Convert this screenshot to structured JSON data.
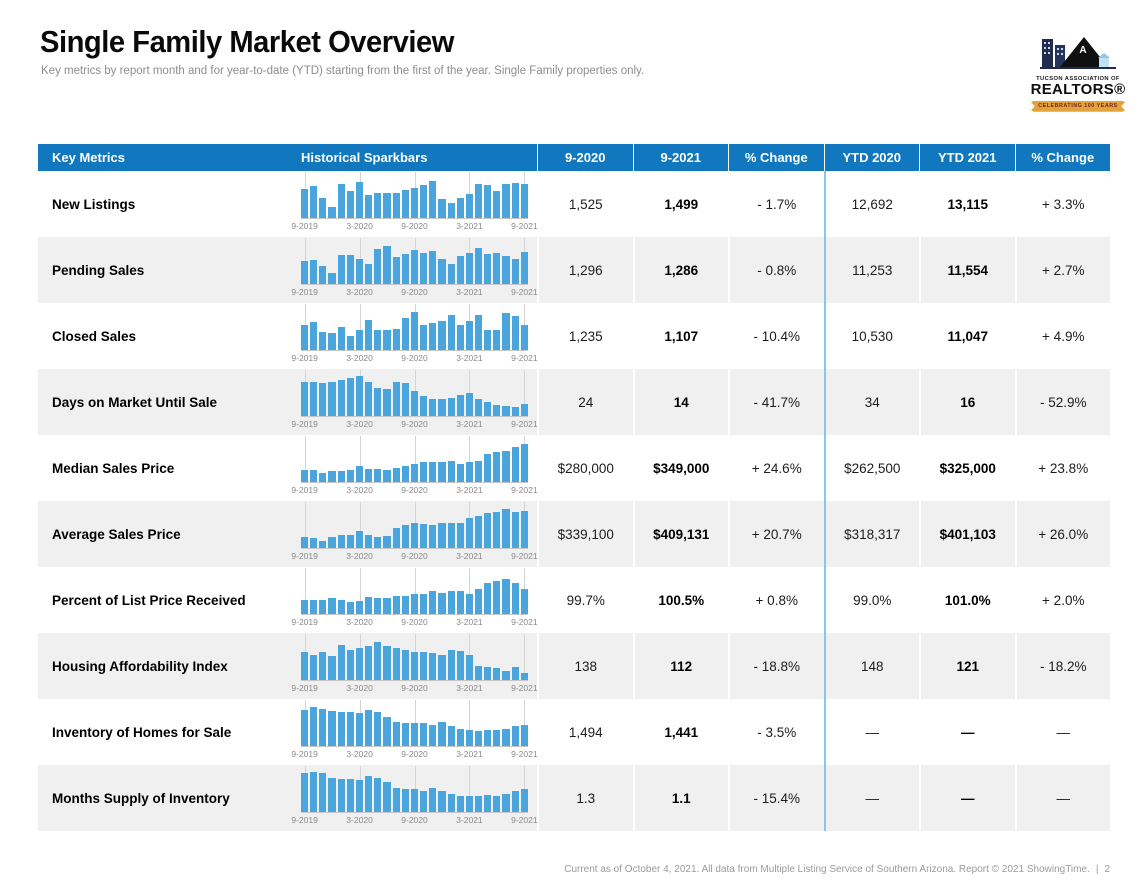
{
  "header": {
    "title": "Single Family Market Overview",
    "subtitle": "Key metrics by report month and for year-to-date (YTD) starting from the first of the year. Single Family properties only."
  },
  "logo": {
    "org_line1": "TUCSON ASSOCIATION OF",
    "org_line2": "REALTORS®",
    "banner": "CELEBRATING 100 YEARS"
  },
  "colors": {
    "header_blue": "#1177bf",
    "sparkbar_blue": "#49a5dc",
    "ytd_divider_blue": "#86c8ea",
    "row_alt_gray": "#f0f0f1"
  },
  "table": {
    "columns": [
      "Key Metrics",
      "Historical Sparkbars",
      "9-2020",
      "9-2021",
      "% Change",
      "YTD 2020",
      "YTD 2021",
      "% Change"
    ],
    "axis_labels": [
      "9-2019",
      "3-2020",
      "9-2020",
      "3-2021",
      "9-2021"
    ],
    "rows": [
      {
        "metric": "New Listings",
        "values": [
          "1,525",
          "1,499",
          "- 1.7%",
          "12,692",
          "13,115",
          "+ 3.3%"
        ],
        "sparkbar": [
          70,
          78,
          50,
          27,
          84,
          65,
          88,
          55,
          60,
          60,
          62,
          68,
          72,
          80,
          90,
          46,
          36,
          50,
          58,
          84,
          80,
          65,
          82,
          86,
          84
        ]
      },
      {
        "metric": "Pending Sales",
        "values": [
          "1,296",
          "1,286",
          "- 0.8%",
          "11,253",
          "11,554",
          "+ 2.7%"
        ],
        "sparkbar": [
          55,
          58,
          45,
          28,
          70,
          70,
          62,
          48,
          85,
          92,
          65,
          72,
          82,
          75,
          80,
          62,
          48,
          68,
          75,
          88,
          72,
          75,
          68,
          60,
          78
        ]
      },
      {
        "metric": "Closed Sales",
        "values": [
          "1,235",
          "1,107",
          "- 10.4%",
          "10,530",
          "11,047",
          "+ 4.9%"
        ],
        "sparkbar": [
          62,
          68,
          45,
          42,
          55,
          35,
          48,
          72,
          48,
          48,
          52,
          78,
          92,
          60,
          65,
          70,
          85,
          62,
          70,
          85,
          48,
          50,
          90,
          82,
          62
        ]
      },
      {
        "metric": "Days on Market Until Sale",
        "values": [
          "24",
          "14",
          "- 41.7%",
          "34",
          "16",
          "- 52.9%"
        ],
        "sparkbar": [
          82,
          84,
          80,
          84,
          88,
          92,
          98,
          82,
          68,
          65,
          82,
          80,
          62,
          48,
          42,
          42,
          45,
          52,
          55,
          42,
          35,
          28,
          25,
          22,
          30
        ]
      },
      {
        "metric": "Median Sales Price",
        "values": [
          "$280,000",
          "$349,000",
          "+ 24.6%",
          "$262,500",
          "$325,000",
          "+ 23.8%"
        ],
        "sparkbar": [
          30,
          30,
          22,
          28,
          28,
          30,
          38,
          32,
          32,
          30,
          35,
          40,
          45,
          48,
          48,
          50,
          52,
          45,
          50,
          52,
          68,
          72,
          75,
          85,
          92
        ]
      },
      {
        "metric": "Average Sales Price",
        "values": [
          "$339,100",
          "$409,131",
          "+ 20.7%",
          "$318,317",
          "$401,103",
          "+ 26.0%"
        ],
        "sparkbar": [
          28,
          25,
          18,
          28,
          32,
          32,
          42,
          32,
          28,
          30,
          48,
          55,
          62,
          58,
          55,
          60,
          62,
          60,
          72,
          78,
          85,
          88,
          95,
          88,
          90
        ]
      },
      {
        "metric": "Percent of List Price Received",
        "values": [
          "99.7%",
          "100.5%",
          "+ 0.8%",
          "99.0%",
          "101.0%",
          "+ 2.0%"
        ],
        "sparkbar": [
          35,
          33,
          35,
          38,
          35,
          30,
          32,
          42,
          40,
          38,
          45,
          45,
          48,
          50,
          55,
          52,
          55,
          55,
          48,
          62,
          75,
          80,
          85,
          75,
          62
        ]
      },
      {
        "metric": "Housing Affordability Index",
        "values": [
          "138",
          "112",
          "- 18.8%",
          "148",
          "121",
          "- 18.2%"
        ],
        "sparkbar": [
          68,
          62,
          68,
          58,
          85,
          72,
          78,
          82,
          92,
          82,
          78,
          72,
          68,
          68,
          65,
          62,
          72,
          70,
          62,
          35,
          32,
          30,
          22,
          32,
          18
        ]
      },
      {
        "metric": "Inventory of Homes for Sale",
        "values": [
          "1,494",
          "1,441",
          "- 3.5%",
          "—",
          "—",
          "—"
        ],
        "sparkbar": [
          88,
          95,
          90,
          85,
          82,
          82,
          80,
          88,
          84,
          70,
          58,
          55,
          55,
          55,
          52,
          58,
          48,
          42,
          38,
          36,
          38,
          40,
          42,
          48,
          52
        ]
      },
      {
        "metric": "Months Supply of Inventory",
        "values": [
          "1.3",
          "1.1",
          "- 15.4%",
          "—",
          "—",
          "—"
        ],
        "sparkbar": [
          95,
          97,
          95,
          82,
          80,
          80,
          78,
          88,
          82,
          72,
          58,
          55,
          55,
          52,
          58,
          52,
          45,
          40,
          38,
          40,
          42,
          38,
          45,
          52,
          55
        ]
      }
    ]
  },
  "footer": {
    "text": "Current as of October 4, 2021. All data from Multiple Listing Service of Southern Arizona. Report © 2021 ShowingTime.",
    "separator": "|",
    "page": "2"
  }
}
